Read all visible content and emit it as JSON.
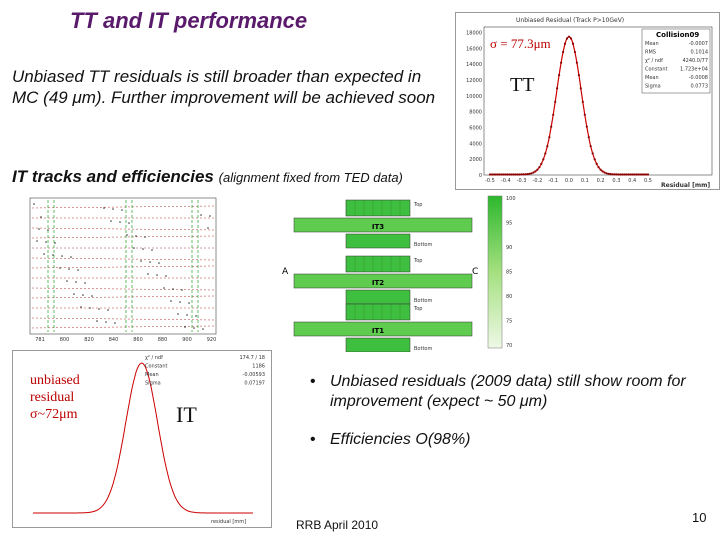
{
  "slide": {
    "title": "TT and IT performance",
    "intro": "Unbiased TT residuals is still broader than expected in MC (49 μm). Further improvement will be achieved soon",
    "it_heading": "IT tracks and efficiencies",
    "it_note": "(alignment fixed from TED data)",
    "bullets": [
      "Unbiased residuals (2009 data) still show room for improvement (expect ~ 50 μm)",
      "Efficiencies O(98%)"
    ],
    "footer": "RRB April 2010",
    "page_number": "10"
  },
  "tt_plot": {
    "title": "Unbiased Residual (Track P>10GeV)",
    "stats_title": "Collision09",
    "sigma_label": "σ = 77.3μm",
    "detector_label": "TT",
    "xlabel": "Residual [mm]",
    "yticks": [
      "0",
      "2000",
      "4000",
      "6000",
      "8000",
      "10000",
      "12000",
      "14000",
      "16000",
      "18000"
    ],
    "xticks": [
      "-0.5",
      "-0.4",
      "-0.3",
      "-0.2",
      "-0.1",
      "0.0",
      "0.1",
      "0.2",
      "0.3",
      "0.4",
      "0.5"
    ],
    "stats": [
      {
        "k": "Mean",
        "v": "-0.0007"
      },
      {
        "k": "RMS",
        "v": "0.1014"
      },
      {
        "k": "χ² / ndf",
        "v": "4240.0/77"
      },
      {
        "k": "Constant",
        "v": "1.723e+04"
      },
      {
        "k": "Mean",
        "v": "-0.0008"
      },
      {
        "k": "Sigma",
        "v": "0.0773"
      }
    ]
  },
  "it_hits_plot": {
    "xticks": [
      "781",
      "800",
      "820",
      "840",
      "860",
      "880",
      "900",
      "920"
    ]
  },
  "it_layout": {
    "boxes": [
      "IT3",
      "IT2",
      "IT1"
    ],
    "side_left": "A",
    "side_right": "C",
    "top_label": "Top",
    "bottom_label": "Bottom",
    "scale_ticks": [
      "100",
      "95",
      "90",
      "85",
      "80",
      "75",
      "70"
    ]
  },
  "it_residual_plot": {
    "detector_label": "IT",
    "note": [
      "unbiased",
      "residual",
      "σ~72μm"
    ],
    "xlabel": "residual [mm]",
    "stats": [
      {
        "k": "χ² / ndf",
        "v": "174.7 / 18"
      },
      {
        "k": "Constant",
        "v": "1186"
      },
      {
        "k": "Mean",
        "v": "-0.00593"
      },
      {
        "k": "Sigma",
        "v": "0.07197"
      }
    ]
  },
  "colors": {
    "title": "#5a1a6b",
    "curve": "#cc0000",
    "marker": "#8b0000",
    "efficiency": "#3fbf3f"
  }
}
